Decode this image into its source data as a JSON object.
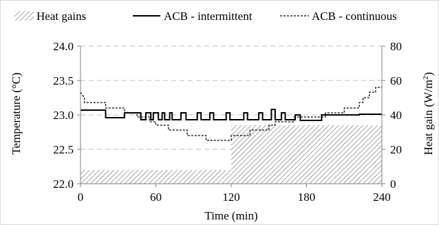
{
  "chart_data": {
    "type": "line",
    "xlabel": "Time (min)",
    "ylabel_left": "Temperature (°C)",
    "ylabel_right_prefix": "Heat gain (W/m",
    "ylabel_right_sup": "2",
    "ylabel_right_suffix": ")",
    "x_ticks": [
      "0",
      "60",
      "120",
      "180",
      "240"
    ],
    "y_left_ticks": [
      "22.0",
      "22.5",
      "23.0",
      "23.5",
      "24.0"
    ],
    "y_right_ticks": [
      "0",
      "20",
      "40",
      "60",
      "80"
    ],
    "xlim": [
      0,
      240
    ],
    "ylim_left": [
      22.0,
      24.0
    ],
    "ylim_right": [
      0,
      80
    ],
    "grid": "horizontal dashed",
    "legend_position": "top",
    "legend": [
      "Heat gains",
      "ACB - intermittent",
      "ACB - continuous"
    ],
    "series": [
      {
        "name": "Heat gains",
        "kind": "hatched-area",
        "axis": "right",
        "x": [
          0,
          120,
          120,
          240
        ],
        "values": [
          8,
          8,
          34,
          34
        ]
      },
      {
        "name": "ACB - intermittent",
        "kind": "solid-step",
        "axis": "left",
        "x": [
          0,
          20,
          20,
          35,
          35,
          48,
          48,
          52,
          52,
          56,
          56,
          58,
          58,
          62,
          62,
          65,
          65,
          67,
          67,
          71,
          71,
          73,
          73,
          80,
          80,
          84,
          84,
          93,
          93,
          96,
          96,
          103,
          103,
          106,
          106,
          116,
          116,
          119,
          119,
          130,
          130,
          133,
          133,
          142,
          142,
          145,
          145,
          152,
          152,
          155,
          155,
          160,
          160,
          163,
          163,
          171,
          171,
          175,
          175,
          192,
          192,
          222,
          222,
          240
        ],
        "values": [
          23.07,
          23.07,
          22.96,
          22.96,
          23.03,
          23.03,
          22.93,
          22.93,
          23.03,
          23.03,
          22.93,
          22.93,
          23.03,
          23.03,
          22.93,
          22.93,
          23.03,
          23.03,
          22.93,
          22.93,
          23.03,
          23.03,
          22.93,
          22.93,
          23.03,
          23.03,
          22.93,
          22.93,
          23.03,
          23.03,
          22.93,
          22.93,
          23.03,
          23.03,
          22.93,
          22.93,
          23.03,
          23.03,
          22.93,
          22.93,
          23.03,
          23.03,
          22.93,
          22.93,
          23.03,
          23.03,
          22.93,
          22.93,
          23.08,
          23.08,
          22.93,
          22.93,
          23.03,
          23.03,
          22.93,
          22.93,
          23.0,
          23.0,
          22.92,
          22.92,
          23.0,
          23.0,
          23.01,
          23.01
        ]
      },
      {
        "name": "ACB - continuous",
        "kind": "dashed-step",
        "axis": "left",
        "x": [
          0,
          3,
          3,
          20,
          20,
          35,
          35,
          45,
          45,
          55,
          55,
          60,
          60,
          70,
          70,
          85,
          85,
          100,
          100,
          120,
          120,
          135,
          135,
          150,
          150,
          155,
          155,
          170,
          170,
          195,
          195,
          210,
          210,
          222,
          222,
          225,
          225,
          230,
          230,
          235,
          235,
          237,
          237,
          240
        ],
        "values": [
          23.33,
          23.25,
          23.18,
          23.18,
          23.1,
          23.1,
          23.03,
          23.03,
          22.97,
          22.97,
          22.9,
          22.9,
          22.85,
          22.85,
          22.78,
          22.78,
          22.7,
          22.7,
          22.63,
          22.63,
          22.7,
          22.7,
          22.78,
          22.78,
          22.85,
          22.85,
          22.9,
          22.9,
          22.97,
          22.97,
          23.03,
          23.03,
          23.1,
          23.1,
          23.18,
          23.18,
          23.25,
          23.25,
          23.33,
          23.33,
          23.4,
          23.4,
          23.4,
          23.4
        ]
      }
    ]
  }
}
